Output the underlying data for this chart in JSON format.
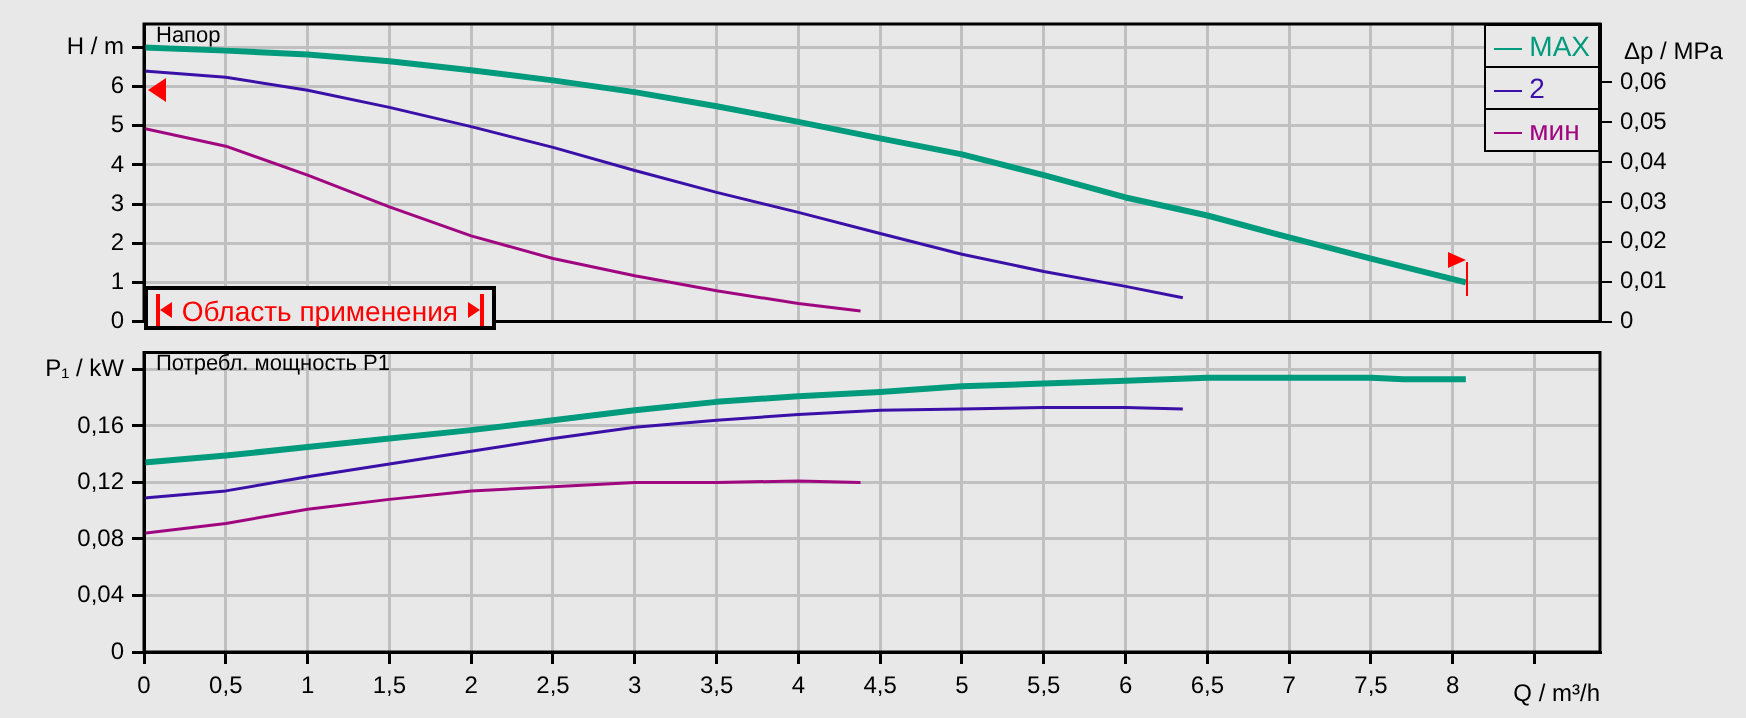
{
  "chart_data": [
    {
      "type": "line",
      "ylabel": "H / m",
      "y2label": "Δp / MPa",
      "annotations": [
        "Напор",
        "Область применения"
      ],
      "xlim": [
        0,
        8.9
      ],
      "xticks": [
        0,
        0.5,
        1,
        1.5,
        2,
        2.5,
        3,
        3.5,
        4,
        4.5,
        5,
        5.5,
        6,
        6.5,
        7,
        7.5,
        8,
        8.5
      ],
      "ylim": [
        0,
        7.6
      ],
      "yticks": [
        0,
        1,
        2,
        3,
        4,
        5,
        6,
        {
          "value": 7,
          "label": null
        }
      ],
      "y2lim": [
        0,
        0.0746
      ],
      "y2ticks": [
        0,
        {
          "value": 0.01,
          "label": "0,01"
        },
        {
          "value": 0.02,
          "label": "0,02"
        },
        {
          "value": 0.03,
          "label": "0,03"
        },
        {
          "value": 0.04,
          "label": "0,04"
        },
        {
          "value": 0.05,
          "label": "0,05"
        },
        {
          "value": 0.06,
          "label": "0,06"
        }
      ],
      "tick_labels": "y",
      "grid": true,
      "legend": "top right",
      "series": [
        {
          "name": "MAX",
          "color": "#009b7d",
          "x": [
            0,
            0.5,
            1,
            1.5,
            2,
            2.5,
            3,
            3.5,
            4,
            4.5,
            5,
            5.5,
            6,
            6.5,
            7,
            7.5,
            8.08
          ],
          "values": [
            7.0,
            6.92,
            6.82,
            6.65,
            6.42,
            6.16,
            5.86,
            5.5,
            5.1,
            4.68,
            4.27,
            3.74,
            3.17,
            2.71,
            2.15,
            1.61,
            1.0
          ]
        },
        {
          "name": "2",
          "color": "#3a10a8",
          "x": [
            0,
            0.5,
            1,
            1.5,
            2,
            2.5,
            3,
            3.5,
            4,
            4.5,
            5,
            5.5,
            6,
            6.35
          ],
          "values": [
            6.4,
            6.24,
            5.91,
            5.47,
            4.98,
            4.45,
            3.86,
            3.3,
            2.79,
            2.25,
            1.72,
            1.28,
            0.9,
            0.61
          ]
        },
        {
          "name": "мин",
          "color": "#a0067f",
          "x": [
            0,
            0.5,
            1,
            1.5,
            2,
            2.5,
            3,
            3.5,
            4,
            4.38
          ],
          "values": [
            4.93,
            4.48,
            3.74,
            2.93,
            2.19,
            1.61,
            1.17,
            0.79,
            0.46,
            0.27
          ]
        }
      ]
    },
    {
      "type": "line",
      "ylabel": "P₁ / kW",
      "xlabel": "Q / m³/h",
      "annotations": [
        "Потребл. мощность P1"
      ],
      "xlim": [
        0,
        8.9
      ],
      "xticks": [
        0,
        {
          "value": 0.5,
          "label": "0,5"
        },
        1,
        {
          "value": 1.5,
          "label": "1,5"
        },
        2,
        {
          "value": 2.5,
          "label": "2,5"
        },
        3,
        {
          "value": 3.5,
          "label": "3,5"
        },
        4,
        {
          "value": 4.5,
          "label": "4,5"
        },
        5,
        {
          "value": 5.5,
          "label": "5,5"
        },
        6,
        {
          "value": 6.5,
          "label": "6,5"
        },
        7,
        {
          "value": 7.5,
          "label": "7,5"
        },
        8,
        {
          "value": 8.5,
          "label": null
        }
      ],
      "ylim": [
        0,
        0.212
      ],
      "yticks": [
        0,
        {
          "value": 0.04,
          "label": "0,04"
        },
        {
          "value": 0.08,
          "label": "0,08"
        },
        {
          "value": 0.12,
          "label": "0,12"
        },
        {
          "value": 0.16,
          "label": "0,16"
        },
        {
          "value": 0.2,
          "label": null
        }
      ],
      "grid": true,
      "series": [
        {
          "color": "#009b7d",
          "x": [
            0,
            0.5,
            1,
            1.5,
            2,
            2.5,
            3,
            3.5,
            4,
            4.5,
            5,
            5.5,
            6,
            6.5,
            7,
            7.5,
            7.7,
            8.08
          ],
          "values": [
            0.134,
            0.139,
            0.145,
            0.151,
            0.157,
            0.164,
            0.171,
            0.177,
            0.181,
            0.184,
            0.188,
            0.19,
            0.192,
            0.194,
            0.194,
            0.194,
            0.193,
            0.193
          ]
        },
        {
          "color": "#3a10a8",
          "x": [
            0,
            0.5,
            1,
            1.5,
            2,
            2.5,
            3,
            3.5,
            4,
            4.5,
            5,
            5.5,
            6,
            6.35
          ],
          "values": [
            0.109,
            0.114,
            0.124,
            0.133,
            0.142,
            0.151,
            0.159,
            0.164,
            0.168,
            0.171,
            0.172,
            0.173,
            0.173,
            0.172
          ]
        },
        {
          "color": "#a0067f",
          "x": [
            0,
            0.5,
            1,
            1.5,
            2,
            2.5,
            3,
            3.5,
            4,
            4.38
          ],
          "values": [
            0.084,
            0.091,
            0.101,
            0.108,
            0.114,
            0.117,
            0.12,
            0.12,
            0.121,
            0.12
          ]
        }
      ]
    }
  ]
}
